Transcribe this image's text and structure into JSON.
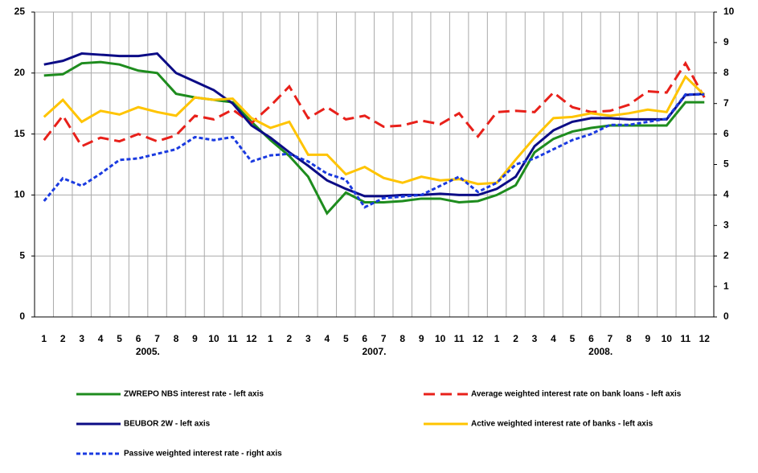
{
  "chart_data": {
    "type": "line",
    "categories": [
      "1",
      "2",
      "3",
      "4",
      "5",
      "6",
      "7",
      "8",
      "9",
      "10",
      "11",
      "12",
      "1",
      "2",
      "3",
      "4",
      "5",
      "6",
      "7",
      "8",
      "9",
      "10",
      "11",
      "12",
      "1",
      "2",
      "3",
      "4",
      "5",
      "6",
      "7",
      "8",
      "9",
      "10",
      "11",
      "12"
    ],
    "year_labels": [
      "2005.",
      "2007.",
      "2008."
    ],
    "ylim": [
      0,
      25
    ],
    "yticks": [
      0,
      5,
      10,
      15,
      20,
      25
    ],
    "y2lim": [
      0,
      10
    ],
    "y2ticks": [
      0,
      1,
      2,
      3,
      4,
      5,
      6,
      7,
      8,
      9,
      10
    ],
    "grid": true,
    "series": [
      {
        "name": "ZWREPO NBS interest rate - left axis",
        "color": "#1e8c1e",
        "dash": "none",
        "values": [
          19.8,
          19.9,
          20.8,
          20.9,
          20.7,
          20.2,
          20,
          18.3,
          18,
          17.8,
          17.6,
          16,
          14.5,
          13.2,
          11.5,
          8.5,
          10.2,
          9.4,
          9.4,
          9.5,
          9.7,
          9.7,
          9.4,
          9.5,
          10,
          10.8,
          13.5,
          14.6,
          15.2,
          15.5,
          15.7,
          15.7,
          15.7,
          15.7,
          17.6,
          17.6
        ]
      },
      {
        "name": "Average weighted interest rate on bank loans - left axis",
        "color": "#e8201a",
        "dash": "long",
        "values": [
          14.5,
          16.5,
          14,
          14.7,
          14.4,
          15,
          14.4,
          14.9,
          16.5,
          16.2,
          17,
          15.9,
          17.3,
          18.9,
          16.3,
          17.2,
          16.2,
          16.5,
          15.6,
          15.7,
          16.1,
          15.8,
          16.7,
          14.8,
          16.8,
          16.9,
          16.8,
          18.4,
          17.2,
          16.8,
          16.9,
          17.4,
          18.5,
          18.4,
          20.8,
          18
        ]
      },
      {
        "name": "BEUBOR 2W - left axis",
        "color": "#0c0c86",
        "dash": "none",
        "values": [
          20.7,
          21,
          21.6,
          21.5,
          21.4,
          21.4,
          21.6,
          20,
          19.3,
          18.6,
          17.5,
          15.7,
          14.7,
          13.5,
          12.4,
          11.2,
          10.5,
          9.9,
          9.9,
          10,
          10,
          10.1,
          10,
          10,
          10.5,
          11.5,
          14,
          15.3,
          16,
          16.3,
          16.3,
          16.2,
          16.2,
          16.2,
          18.2,
          18.3
        ]
      },
      {
        "name": "Active weighted interest rate of banks - left axis",
        "color": "#ffc400",
        "dash": "none",
        "values": [
          16.4,
          17.8,
          16,
          16.9,
          16.6,
          17.2,
          16.8,
          16.5,
          18,
          17.8,
          17.9,
          16.3,
          15.5,
          16,
          13.3,
          13.3,
          11.7,
          12.3,
          11.4,
          11,
          11.5,
          11.2,
          11.3,
          10.9,
          11,
          12.9,
          14.7,
          16.3,
          16.4,
          16.7,
          16.5,
          16.7,
          17,
          16.8,
          19.7,
          18.2
        ]
      },
      {
        "name": "Passive weighted interest rate - right axis",
        "color": "#1a3ae0",
        "dash": "short",
        "axis": "y2",
        "values": [
          3.8,
          4.55,
          4.3,
          4.7,
          5.15,
          5.2,
          5.35,
          5.5,
          5.9,
          5.8,
          5.9,
          5.1,
          5.3,
          5.35,
          5.1,
          4.7,
          4.5,
          3.6,
          3.9,
          3.95,
          4,
          4.3,
          4.6,
          4.1,
          4.4,
          5,
          5.2,
          5.5,
          5.8,
          6,
          6.3,
          6.3,
          6.4,
          6.5,
          7.3,
          7.3
        ]
      }
    ]
  }
}
